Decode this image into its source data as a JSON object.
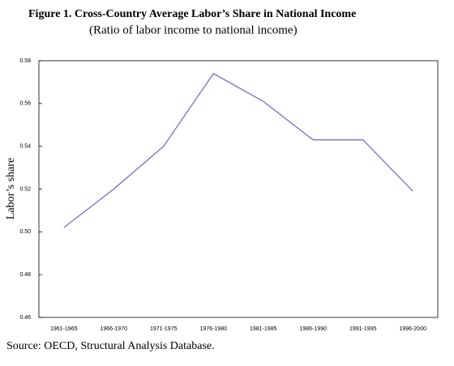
{
  "chart_data": {
    "type": "line",
    "title": "Figure 1. Cross-Country Average Labor’s Share in National Income",
    "subtitle": "(Ratio of labor income to national income)",
    "y_label": "Labor’s share",
    "source": "Source: OECD, Structural Analysis Database.",
    "categories": [
      "1961-1965",
      "1966-1970",
      "1971-1975",
      "1976-1980",
      "1981-1985",
      "1986-1990",
      "1991-1995",
      "1996-2000"
    ],
    "series": [
      {
        "name": "Labor’s share",
        "color": "#6666cc",
        "values": [
          0.502,
          0.52,
          0.54,
          0.574,
          0.561,
          0.543,
          0.543,
          0.519
        ]
      }
    ],
    "ylim": [
      0.46,
      0.58
    ],
    "yticks": [
      0.46,
      0.48,
      {
        "value": 0.5,
        "label": "0.50"
      },
      0.52,
      0.54,
      0.56,
      0.58
    ],
    "grid": false
  }
}
